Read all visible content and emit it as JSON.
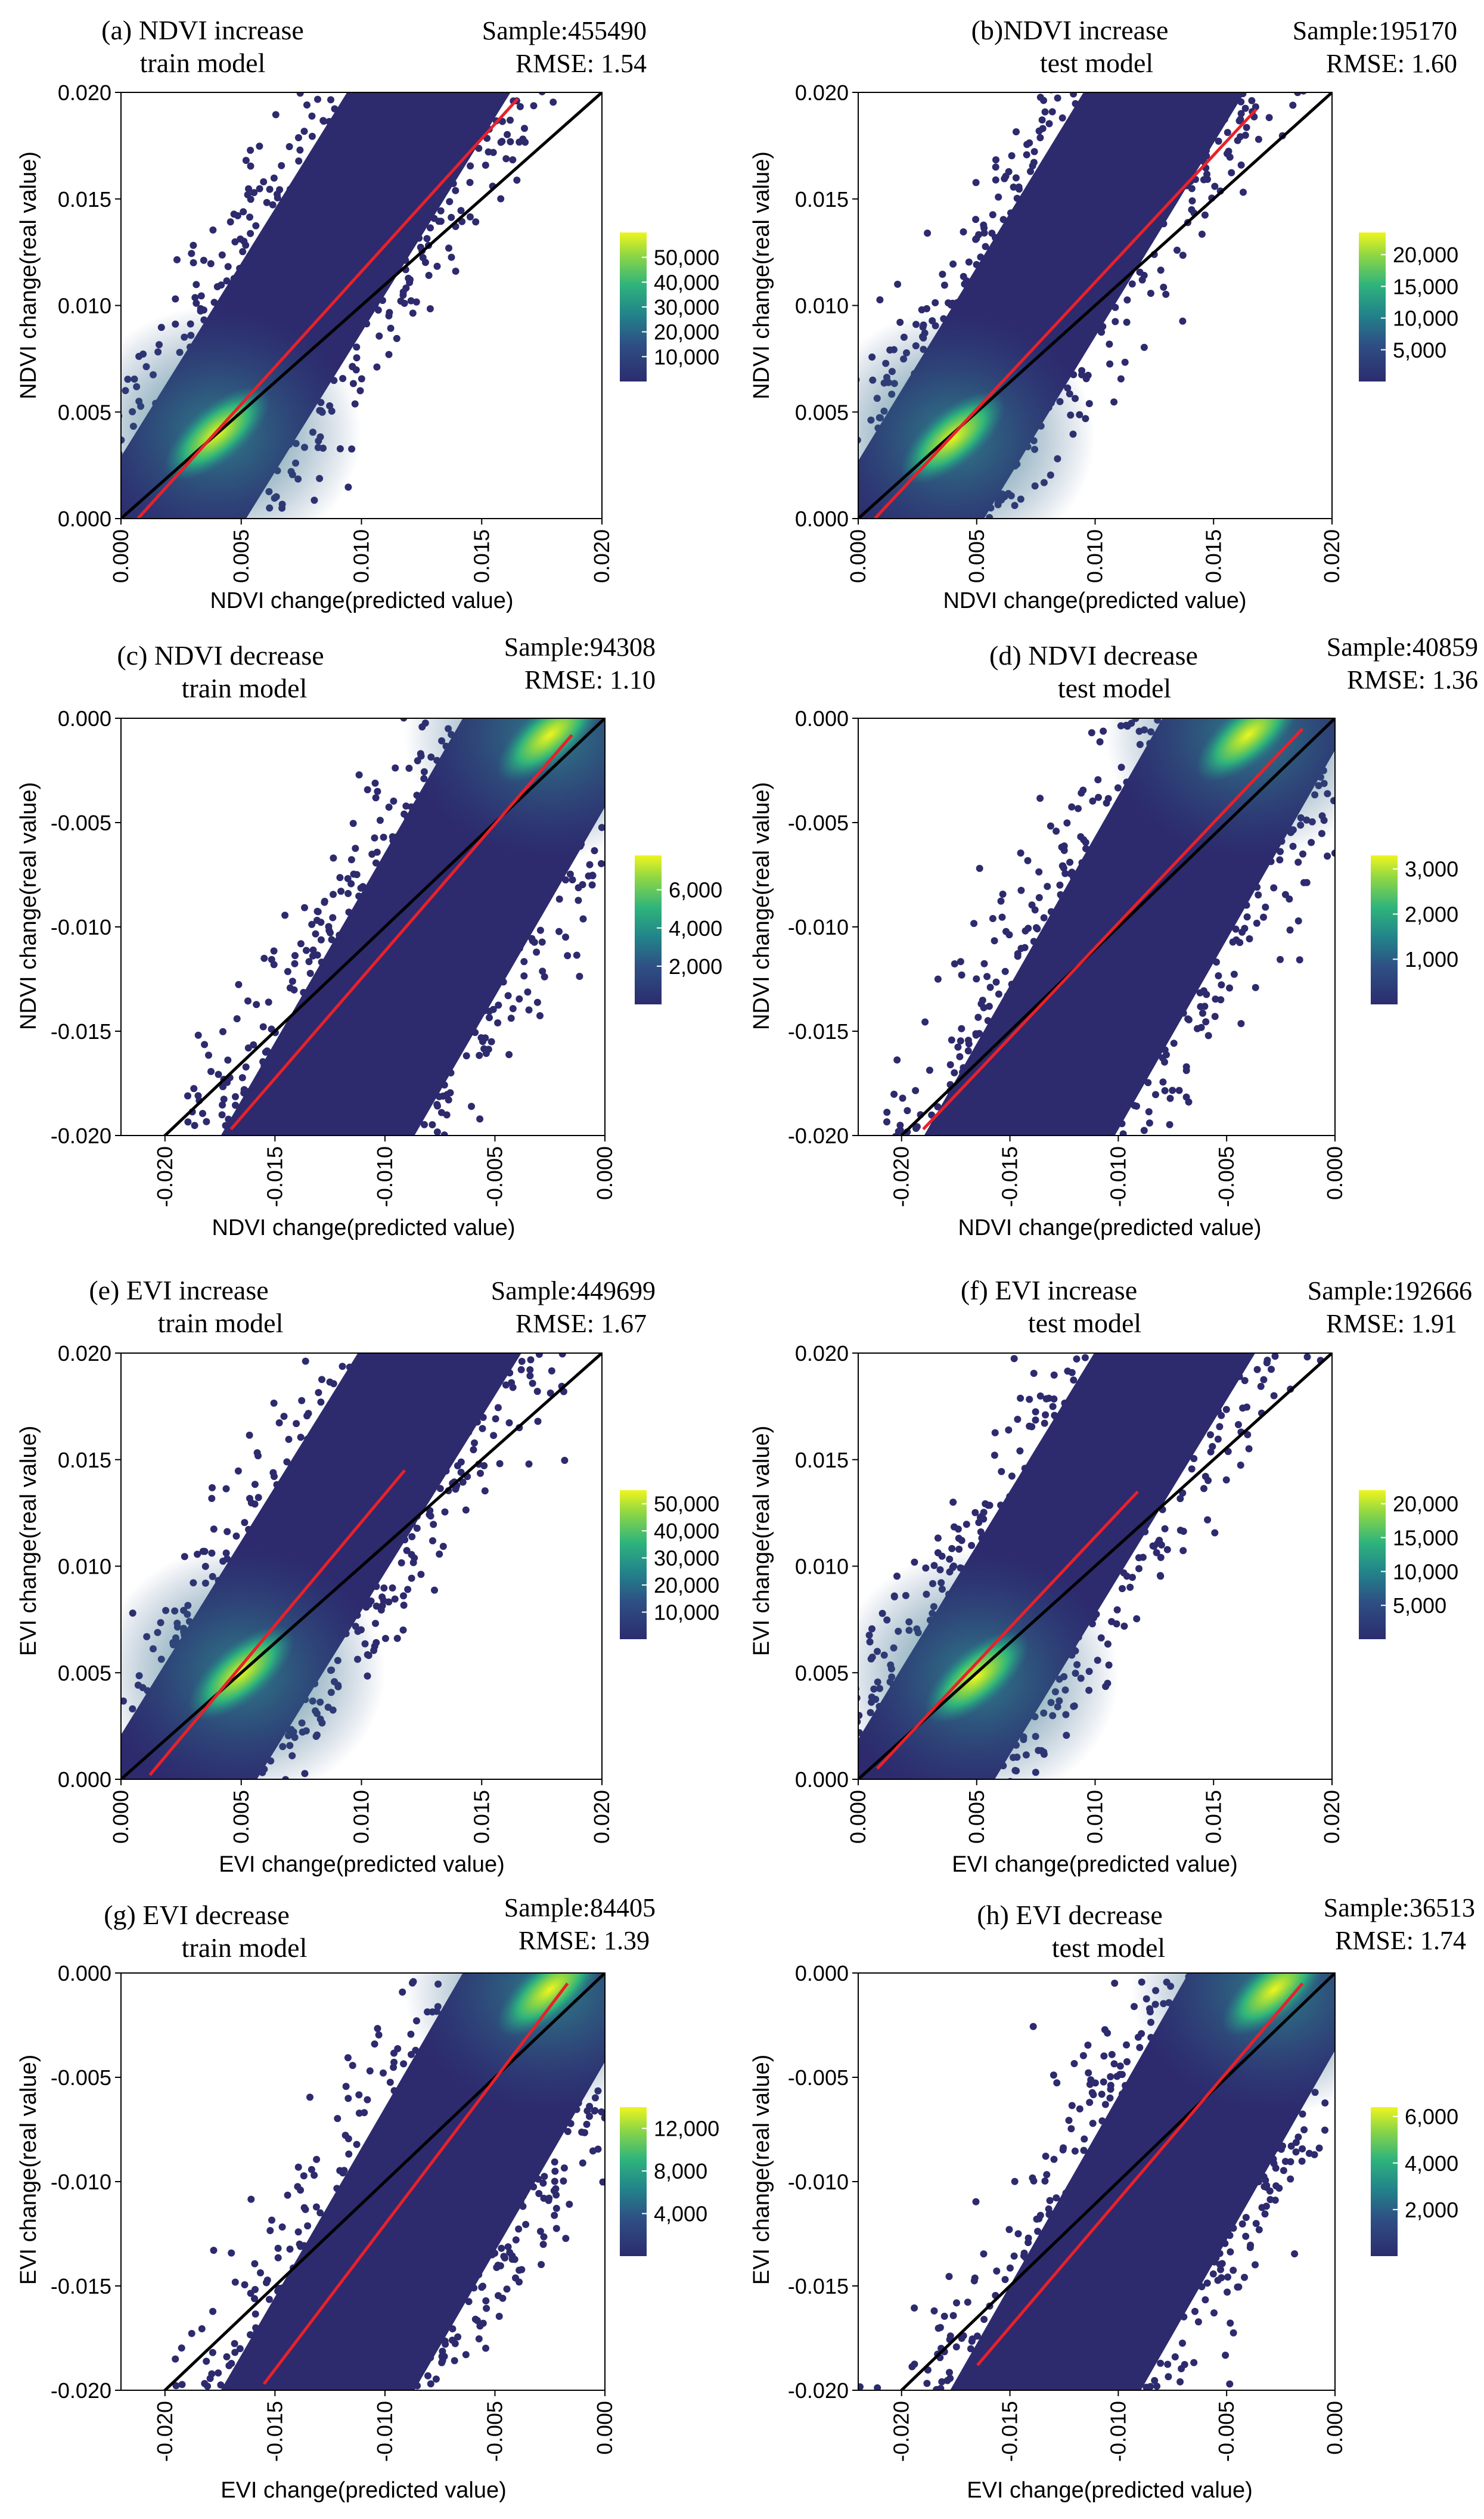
{
  "figure": {
    "panels": [
      {
        "id": "a",
        "title_line1": "(a) NDVI increase",
        "title_line2": "train model",
        "sample": "Sample:455490",
        "rmse": "RMSE: 1.54"
      },
      {
        "id": "b",
        "title_line1": "(b)NDVI increase",
        "title_line2": "test model",
        "sample": "Sample:195170",
        "rmse": "RMSE: 1.60"
      },
      {
        "id": "c",
        "title_line1": "(c)  NDVI decrease",
        "title_line2": "train model",
        "sample": "Sample:94308",
        "rmse": "RMSE: 1.10"
      },
      {
        "id": "d",
        "title_line1": "(d) NDVI decrease",
        "title_line2": "test model",
        "sample": "Sample:40859",
        "rmse": "RMSE: 1.36"
      },
      {
        "id": "e",
        "title_line1": "(e)  EVI increase",
        "title_line2": "train model",
        "sample": "Sample:449699",
        "rmse": "RMSE: 1.67"
      },
      {
        "id": "f",
        "title_line1": "(f)  EVI increase",
        "title_line2": "test model",
        "sample": "Sample:192666",
        "rmse": "RMSE: 1.91"
      },
      {
        "id": "g",
        "title_line1": "(g)  EVI decrease",
        "title_line2": "train model",
        "sample": "Sample:84405",
        "rmse": "RMSE: 1.39"
      },
      {
        "id": "h",
        "title_line1": "(h)  EVI decrease",
        "title_line2": "test model",
        "sample": "Sample:36513",
        "rmse": "RMSE: 1.74"
      }
    ]
  },
  "chart_data": [
    {
      "id": "a",
      "type": "scatter",
      "title": "(a) NDVI increase train model",
      "sample_size": 455490,
      "rmse": 1.54,
      "xlabel": "NDVI change(predicted value)",
      "ylabel": "NDVI change(real value)",
      "xlim": [
        0,
        0.02
      ],
      "ylim": [
        0,
        0.02
      ],
      "xticks": [
        "0.000",
        "0.005",
        "0.010",
        "0.015",
        "0.020"
      ],
      "yticks": [
        "0.000",
        "0.005",
        "0.010",
        "0.015",
        "0.020"
      ],
      "colorbar_ticks": [
        "50,000",
        "40,000",
        "30,000",
        "20,000",
        "10,000"
      ],
      "colorbar_values": [
        50000,
        40000,
        30000,
        20000,
        10000
      ],
      "colorbar_range": [
        0,
        60000
      ],
      "density_peak": [
        0.004,
        0.004
      ],
      "identity_line": {
        "x": [
          0,
          0.02
        ],
        "y": [
          0,
          0.02
        ]
      },
      "regression_line": {
        "x": [
          0.0007,
          0.0165
        ],
        "y": [
          0,
          0.0197
        ]
      }
    },
    {
      "id": "b",
      "type": "scatter",
      "title": "(b)NDVI increase test model",
      "sample_size": 195170,
      "rmse": 1.6,
      "xlabel": "NDVI change(predicted value)",
      "ylabel": "NDVI change(real value)",
      "xlim": [
        0,
        0.02
      ],
      "ylim": [
        0,
        0.02
      ],
      "xticks": [
        "0.000",
        "0.005",
        "0.010",
        "0.015",
        "0.020"
      ],
      "yticks": [
        "0.000",
        "0.005",
        "0.010",
        "0.015",
        "0.020"
      ],
      "colorbar_ticks": [
        "20,000",
        "15,000",
        "10,000",
        "5,000"
      ],
      "colorbar_values": [
        20000,
        15000,
        10000,
        5000
      ],
      "colorbar_range": [
        0,
        23500
      ],
      "density_peak": [
        0.004,
        0.0038
      ],
      "identity_line": {
        "x": [
          0,
          0.02
        ],
        "y": [
          0,
          0.02
        ]
      },
      "regression_line": {
        "x": [
          0.0007,
          0.0168
        ],
        "y": [
          0,
          0.0192
        ]
      }
    },
    {
      "id": "c",
      "type": "scatter",
      "title": "(c) NDVI decrease train model",
      "sample_size": 94308,
      "rmse": 1.1,
      "xlabel": "NDVI change(predicted value)",
      "ylabel": "NDVI change(real value)",
      "xlim": [
        -0.022,
        0
      ],
      "ylim": [
        -0.02,
        0
      ],
      "xticks": [
        "-0.020",
        "-0.015",
        "-0.010",
        "-0.005",
        "0.000"
      ],
      "xtick_values": [
        -0.02,
        -0.015,
        -0.01,
        -0.005,
        0
      ],
      "yticks": [
        "0.000",
        "-0.005",
        "-0.010",
        "-0.015",
        "-0.020"
      ],
      "ytick_values": [
        0,
        -0.005,
        -0.01,
        -0.015,
        -0.02
      ],
      "colorbar_ticks": [
        "6,000",
        "4,000",
        "2,000"
      ],
      "colorbar_values": [
        6000,
        4000,
        2000
      ],
      "colorbar_range": [
        0,
        7800
      ],
      "density_peak": [
        -0.0025,
        -0.0008
      ],
      "identity_line": {
        "x": [
          -0.022,
          0
        ],
        "y": [
          -0.022,
          0
        ]
      },
      "regression_line": {
        "x": [
          -0.017,
          -0.0015
        ],
        "y": [
          -0.0197,
          -0.0008
        ]
      }
    },
    {
      "id": "d",
      "type": "scatter",
      "title": "(d) NDVI decrease test model",
      "sample_size": 40859,
      "rmse": 1.36,
      "xlabel": "NDVI change(predicted value)",
      "ylabel": "NDVI change(real value)",
      "xlim": [
        -0.022,
        0
      ],
      "ylim": [
        -0.02,
        0
      ],
      "xticks": [
        "-0.020",
        "-0.015",
        "-0.010",
        "-0.005",
        "0.000"
      ],
      "xtick_values": [
        -0.02,
        -0.015,
        -0.01,
        -0.005,
        0
      ],
      "yticks": [
        "0.000",
        "-0.005",
        "-0.010",
        "-0.015",
        "-0.020"
      ],
      "ytick_values": [
        0,
        -0.005,
        -0.01,
        -0.015,
        -0.02
      ],
      "colorbar_ticks": [
        "3,000",
        "2,000",
        "1,000"
      ],
      "colorbar_values": [
        3000,
        2000,
        1000
      ],
      "colorbar_range": [
        0,
        3300
      ],
      "density_peak": [
        -0.004,
        -0.0008
      ],
      "identity_line": {
        "x": [
          -0.022,
          0
        ],
        "y": [
          -0.022,
          0
        ]
      },
      "regression_line": {
        "x": [
          -0.019,
          -0.0015
        ],
        "y": [
          -0.0197,
          -0.0005
        ]
      }
    },
    {
      "id": "e",
      "type": "scatter",
      "title": "(e) EVI increase train model",
      "sample_size": 449699,
      "rmse": 1.67,
      "xlabel": "EVI change(predicted value)",
      "ylabel": "EVI change(real value)",
      "xlim": [
        0,
        0.02
      ],
      "ylim": [
        0,
        0.02
      ],
      "xticks": [
        "0.000",
        "0.005",
        "0.010",
        "0.015",
        "0.020"
      ],
      "yticks": [
        "0.000",
        "0.005",
        "0.010",
        "0.015",
        "0.020"
      ],
      "colorbar_ticks": [
        "50,000",
        "40,000",
        "30,000",
        "20,000",
        "10,000"
      ],
      "colorbar_values": [
        50000,
        40000,
        30000,
        20000,
        10000
      ],
      "colorbar_range": [
        0,
        55000
      ],
      "density_peak": [
        0.005,
        0.005
      ],
      "identity_line": {
        "x": [
          0,
          0.02
        ],
        "y": [
          0,
          0.02
        ]
      },
      "regression_line": {
        "x": [
          0.0012,
          0.0118
        ],
        "y": [
          0.0002,
          0.0145
        ]
      }
    },
    {
      "id": "f",
      "type": "scatter",
      "title": "(f) EVI increase test model",
      "sample_size": 192666,
      "rmse": 1.91,
      "xlabel": "EVI change(predicted value)",
      "ylabel": "EVI change(real value)",
      "xlim": [
        0,
        0.02
      ],
      "ylim": [
        0,
        0.02
      ],
      "xticks": [
        "0.000",
        "0.005",
        "0.010",
        "0.015",
        "0.020"
      ],
      "yticks": [
        "0.000",
        "0.005",
        "0.010",
        "0.015",
        "0.020"
      ],
      "colorbar_ticks": [
        "20,000",
        "15,000",
        "10,000",
        "5,000"
      ],
      "colorbar_values": [
        20000,
        15000,
        10000,
        5000
      ],
      "colorbar_range": [
        0,
        22000
      ],
      "density_peak": [
        0.005,
        0.0048
      ],
      "identity_line": {
        "x": [
          0,
          0.02
        ],
        "y": [
          0,
          0.02
        ]
      },
      "regression_line": {
        "x": [
          0.0008,
          0.0118
        ],
        "y": [
          0.0005,
          0.0135
        ]
      }
    },
    {
      "id": "g",
      "type": "scatter",
      "title": "(g) EVI decrease train model",
      "sample_size": 84405,
      "rmse": 1.39,
      "xlabel": "EVI change(predicted value)",
      "ylabel": "EVI change(real value)",
      "xlim": [
        -0.022,
        0
      ],
      "ylim": [
        -0.02,
        0
      ],
      "xticks": [
        "-0.020",
        "-0.015",
        "-0.010",
        "-0.005",
        "0.000"
      ],
      "xtick_values": [
        -0.02,
        -0.015,
        -0.01,
        -0.005,
        0
      ],
      "yticks": [
        "0.000",
        "-0.005",
        "-0.010",
        "-0.015",
        "-0.020"
      ],
      "ytick_values": [
        0,
        -0.005,
        -0.01,
        -0.015,
        -0.02
      ],
      "colorbar_ticks": [
        "12,000",
        "8,000",
        "4,000"
      ],
      "colorbar_values": [
        12000,
        8000,
        4000
      ],
      "colorbar_range": [
        0,
        14000
      ],
      "density_peak": [
        -0.0025,
        -0.0008
      ],
      "identity_line": {
        "x": [
          -0.022,
          0
        ],
        "y": [
          -0.022,
          0
        ]
      },
      "regression_line": {
        "x": [
          -0.0155,
          -0.0017
        ],
        "y": [
          -0.0197,
          -0.0005
        ]
      }
    },
    {
      "id": "h",
      "type": "scatter",
      "title": "(h) EVI decrease test model",
      "sample_size": 36513,
      "rmse": 1.74,
      "xlabel": "EVI change(predicted value)",
      "ylabel": "EVI change(real value)",
      "xlim": [
        -0.022,
        0
      ],
      "ylim": [
        -0.02,
        0
      ],
      "xticks": [
        "-0.020",
        "-0.015",
        "-0.010",
        "-0.005",
        "0.000"
      ],
      "xtick_values": [
        -0.02,
        -0.015,
        -0.01,
        -0.005,
        0
      ],
      "yticks": [
        "0.000",
        "-0.005",
        "-0.010",
        "-0.015",
        "-0.020"
      ],
      "ytick_values": [
        0,
        -0.005,
        -0.01,
        -0.015,
        -0.02
      ],
      "colorbar_ticks": [
        "6,000",
        "4,000",
        "2,000"
      ],
      "colorbar_values": [
        6000,
        4000,
        2000
      ],
      "colorbar_range": [
        0,
        6400
      ],
      "density_peak": [
        -0.0028,
        -0.0008
      ],
      "identity_line": {
        "x": [
          -0.022,
          0
        ],
        "y": [
          -0.022,
          0
        ]
      },
      "regression_line": {
        "x": [
          -0.0165,
          -0.0015
        ],
        "y": [
          -0.0188,
          -0.0005
        ]
      }
    }
  ]
}
